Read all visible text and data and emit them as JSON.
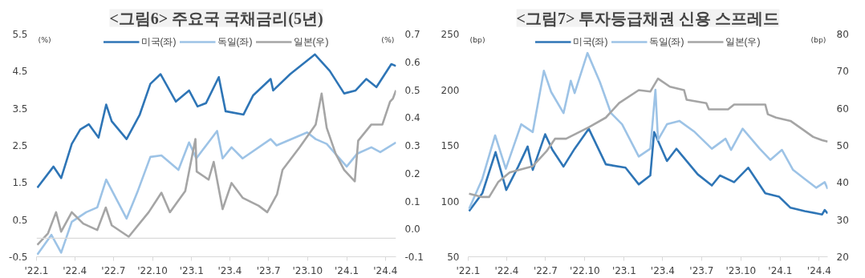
{
  "chart_data": [
    {
      "type": "line",
      "title": "<그림6> 주요국 국채금리(5년)",
      "ylabel": "(%)",
      "y2label": "(%)",
      "legend": "top",
      "xlim": [
        "2022-01-01",
        "2024-04-26"
      ],
      "xticks": [
        {
          "value": "2022-01-01",
          "label": "'22.1"
        },
        {
          "value": "2022-04-01",
          "label": "'22.4"
        },
        {
          "value": "2022-07-01",
          "label": "'22.7"
        },
        {
          "value": "2022-10-01",
          "label": "'22.10"
        },
        {
          "value": "2023-01-01",
          "label": "'23.1"
        },
        {
          "value": "2023-04-01",
          "label": "'23.4"
        },
        {
          "value": "2023-07-01",
          "label": "'23.7"
        },
        {
          "value": "2023-10-01",
          "label": "'23.10"
        },
        {
          "value": "2024-01-01",
          "label": "'24.1"
        },
        {
          "value": "2024-04-01",
          "label": "'24.4"
        }
      ],
      "ylim": [
        -0.5,
        5.5
      ],
      "yticks": [
        -0.5,
        0.5,
        1.5,
        2.5,
        3.5,
        4.5,
        5.5
      ],
      "y2lim": [
        -0.1,
        0.7
      ],
      "y2ticks": [
        -0.1,
        {
          "value": 0,
          "label": "0.0"
        },
        0.1,
        0.2,
        0.3,
        0.4,
        0.5,
        0.6,
        0.7
      ],
      "ref_lines": [
        {
          "axis": "y",
          "value": 0,
          "color": "#d9d9d9"
        }
      ],
      "series": [
        {
          "name": "미국(좌)",
          "color": "#2e75b6",
          "x": [
            "2022-01-03",
            "2022-02-10",
            "2022-02-28",
            "2022-03-25",
            "2022-04-14",
            "2022-05-04",
            "2022-05-27",
            "2022-06-14",
            "2022-06-27",
            "2022-08-01",
            "2022-09-01",
            "2022-09-26",
            "2022-10-20",
            "2022-11-25",
            "2022-12-26",
            "2023-01-15",
            "2023-02-04",
            "2023-03-06",
            "2023-03-22",
            "2023-05-03",
            "2023-05-26",
            "2023-07-06",
            "2023-07-12",
            "2023-08-21",
            "2023-10-18",
            "2023-11-22",
            "2023-12-26",
            "2024-01-22",
            "2024-02-16",
            "2024-03-11",
            "2024-04-15",
            "2024-04-26"
          ],
          "values": [
            1.36,
            1.93,
            1.62,
            2.54,
            2.93,
            3.07,
            2.71,
            3.6,
            3.15,
            2.67,
            3.33,
            4.16,
            4.42,
            3.68,
            3.98,
            3.55,
            3.64,
            4.34,
            3.42,
            3.33,
            3.85,
            4.29,
            3.98,
            4.42,
            4.95,
            4.51,
            3.9,
            3.98,
            4.29,
            4.07,
            4.69,
            4.64
          ]
        },
        {
          "name": "독일(좌)",
          "color": "#9dc3e6",
          "x": [
            "2022-01-03",
            "2022-02-05",
            "2022-02-28",
            "2022-03-25",
            "2022-04-28",
            "2022-05-24",
            "2022-06-14",
            "2022-08-01",
            "2022-08-26",
            "2022-09-26",
            "2022-10-22",
            "2022-12-01",
            "2022-12-26",
            "2023-01-12",
            "2023-03-02",
            "2023-03-15",
            "2023-04-05",
            "2023-05-01",
            "2023-07-06",
            "2023-07-20",
            "2023-09-30",
            "2023-10-20",
            "2023-11-15",
            "2024-01-01",
            "2024-01-26",
            "2024-02-28",
            "2024-03-20",
            "2024-04-26"
          ],
          "values": [
            -0.44,
            0.09,
            -0.39,
            0.44,
            0.7,
            0.83,
            1.58,
            0.53,
            1.23,
            2.19,
            2.23,
            1.84,
            2.58,
            2.15,
            2.89,
            2.15,
            2.45,
            2.15,
            2.67,
            2.5,
            2.85,
            2.67,
            2.54,
            1.93,
            2.28,
            2.45,
            2.32,
            2.58
          ]
        },
        {
          "name": "일본(우)",
          "color": "#a5a5a5",
          "axis": "y2",
          "x": [
            "2022-01-03",
            "2022-01-28",
            "2022-02-16",
            "2022-02-28",
            "2022-03-25",
            "2022-04-21",
            "2022-05-24",
            "2022-06-13",
            "2022-06-27",
            "2022-08-06",
            "2022-09-22",
            "2022-10-22",
            "2022-11-11",
            "2022-12-17",
            "2023-01-10",
            "2023-01-13",
            "2023-02-10",
            "2023-02-22",
            "2023-03-15",
            "2023-04-05",
            "2023-05-01",
            "2023-06-08",
            "2023-06-28",
            "2023-07-21",
            "2023-08-03",
            "2023-09-12",
            "2023-10-20",
            "2023-11-03",
            "2023-11-15",
            "2023-12-06",
            "2023-12-26",
            "2024-01-20",
            "2024-01-28",
            "2024-02-28",
            "2024-03-25",
            "2024-04-12",
            "2024-04-19",
            "2024-04-26"
          ],
          "values": [
            -0.057,
            -0.016,
            0.06,
            -0.01,
            0.06,
            0.019,
            -0.004,
            0.077,
            0.013,
            -0.028,
            0.06,
            0.13,
            0.06,
            0.136,
            0.323,
            0.206,
            0.177,
            0.241,
            0.071,
            0.165,
            0.112,
            0.083,
            0.06,
            0.124,
            0.212,
            0.293,
            0.375,
            0.486,
            0.363,
            0.27,
            0.212,
            0.171,
            0.317,
            0.375,
            0.375,
            0.457,
            0.469,
            0.498
          ]
        }
      ]
    },
    {
      "type": "line",
      "title": "<그림7> 투자등급채권 신용 스프레드",
      "ylabel": "(bp)",
      "y2label": "(bp)",
      "legend": "top",
      "xlim": [
        "2022-01-01",
        "2024-04-21"
      ],
      "xticks": [
        {
          "value": "2022-01-01",
          "label": "'22.1"
        },
        {
          "value": "2022-04-01",
          "label": "'22.4"
        },
        {
          "value": "2022-07-01",
          "label": "'22.7"
        },
        {
          "value": "2022-10-01",
          "label": "'22.10"
        },
        {
          "value": "2023-01-01",
          "label": "'23.1"
        },
        {
          "value": "2023-04-01",
          "label": "'23.4"
        },
        {
          "value": "2023-07-01",
          "label": "'23.7"
        },
        {
          "value": "2023-10-01",
          "label": "'23.10"
        },
        {
          "value": "2024-01-01",
          "label": "'24.1"
        },
        {
          "value": "2024-04-01",
          "label": "'24.4"
        }
      ],
      "ylim": [
        50,
        250
      ],
      "yticks": [
        50,
        100,
        150,
        200,
        250
      ],
      "y2lim": [
        20,
        80
      ],
      "y2ticks": [
        20,
        30,
        40,
        50,
        60,
        70,
        80
      ],
      "series": [
        {
          "name": "미국(좌)",
          "color": "#2e75b6",
          "x": [
            "2022-01-03",
            "2022-02-03",
            "2022-03-06",
            "2022-03-31",
            "2022-04-28",
            "2022-05-20",
            "2022-06-01",
            "2022-06-30",
            "2022-07-17",
            "2022-08-12",
            "2022-09-07",
            "2022-10-10",
            "2022-11-19",
            "2023-01-04",
            "2023-02-04",
            "2023-03-03",
            "2023-03-12",
            "2023-04-11",
            "2023-05-03",
            "2023-06-22",
            "2023-07-25",
            "2023-08-13",
            "2023-09-15",
            "2023-10-18",
            "2023-11-27",
            "2023-12-29",
            "2024-01-25",
            "2024-02-27",
            "2024-04-08",
            "2024-04-14",
            "2024-04-21"
          ],
          "values": [
            91,
            107,
            144,
            110,
            131,
            149,
            128,
            160,
            146,
            131,
            147,
            165,
            133,
            130,
            115,
            123,
            162,
            136,
            147,
            124,
            114,
            123,
            117,
            130,
            107,
            104,
            94,
            91,
            88,
            92,
            89
          ]
        },
        {
          "name": "독일(좌)",
          "color": "#9dc3e6",
          "x": [
            "2022-01-03",
            "2022-02-03",
            "2022-03-05",
            "2022-03-30",
            "2022-05-05",
            "2022-06-01",
            "2022-06-27",
            "2022-07-14",
            "2022-08-12",
            "2022-08-29",
            "2022-09-07",
            "2022-10-07",
            "2022-11-05",
            "2022-12-01",
            "2022-12-27",
            "2023-02-04",
            "2023-03-03",
            "2023-03-15",
            "2023-03-21",
            "2023-04-11",
            "2023-05-10",
            "2023-06-15",
            "2023-07-25",
            "2023-08-26",
            "2023-09-08",
            "2023-10-05",
            "2023-11-14",
            "2023-12-09",
            "2024-01-05",
            "2024-01-31",
            "2024-02-27",
            "2024-03-25",
            "2024-04-14",
            "2024-04-21"
          ],
          "values": [
            93,
            120,
            159,
            129,
            169,
            162,
            217,
            198,
            179,
            208,
            197,
            233,
            207,
            179,
            169,
            140,
            147,
            200,
            155,
            169,
            172,
            162,
            147,
            156,
            146,
            165,
            147,
            137,
            146,
            128,
            120,
            112,
            117,
            111
          ]
        },
        {
          "name": "일본(우)",
          "color": "#a5a5a5",
          "axis": "y2",
          "x": [
            "2022-01-03",
            "2022-02-03",
            "2022-02-19",
            "2022-03-12",
            "2022-04-08",
            "2022-06-01",
            "2022-07-03",
            "2022-07-23",
            "2022-08-18",
            "2022-10-10",
            "2022-11-19",
            "2022-12-20",
            "2023-02-04",
            "2023-03-03",
            "2023-03-21",
            "2023-04-18",
            "2023-05-21",
            "2023-05-27",
            "2023-07-12",
            "2023-07-18",
            "2023-09-01",
            "2023-09-15",
            "2023-11-27",
            "2023-12-03",
            "2023-12-22",
            "2024-01-25",
            "2024-02-20",
            "2024-03-18",
            "2024-04-08",
            "2024-04-21"
          ],
          "values": [
            37.0,
            36.1,
            36.1,
            40.1,
            42.7,
            44.4,
            48.4,
            51.8,
            51.8,
            54.9,
            57.5,
            61.4,
            64.9,
            64.5,
            68.0,
            65.8,
            64.9,
            62.3,
            61.4,
            59.7,
            59.7,
            61.0,
            61.0,
            58.4,
            57.5,
            56.6,
            54.5,
            52.3,
            51.4,
            51.0
          ]
        }
      ]
    }
  ]
}
